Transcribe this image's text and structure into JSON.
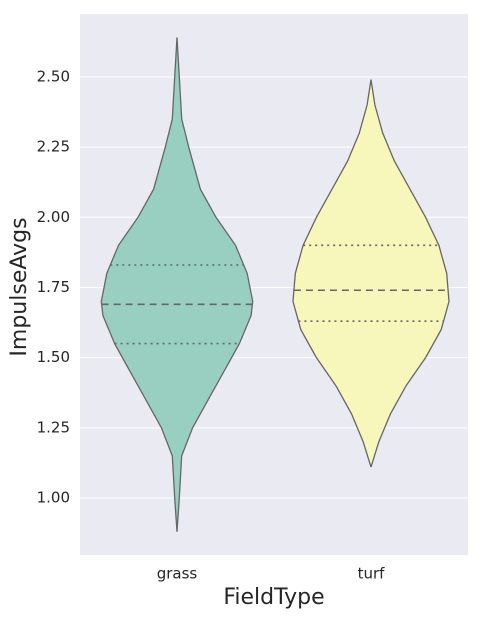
{
  "chart_data": {
    "type": "violin",
    "x_label": "FieldType",
    "y_label": "ImpulseAvgs",
    "categories": [
      "grass",
      "turf"
    ],
    "ylim": [
      0.797,
      2.724
    ],
    "yticks": [
      {
        "value": 1.0,
        "label": "1.00"
      },
      {
        "value": 1.25,
        "label": "1.25"
      },
      {
        "value": 1.5,
        "label": "1.50"
      },
      {
        "value": 1.75,
        "label": "1.75"
      },
      {
        "value": 2.0,
        "label": "2.00"
      },
      {
        "value": 2.25,
        "label": "2.25"
      },
      {
        "value": 2.5,
        "label": "2.50"
      }
    ],
    "grid": true,
    "violins": [
      {
        "color": "#98cfc1",
        "q1": 1.55,
        "median": 1.69,
        "q3": 1.83,
        "profile": {
          "y": [
            0.88,
            1.0,
            1.15,
            1.25,
            1.35,
            1.45,
            1.55,
            1.65,
            1.7,
            1.8,
            1.9,
            2.0,
            2.1,
            2.25,
            2.35,
            2.5,
            2.64
          ],
          "width": [
            0,
            0.03,
            0.06,
            0.2,
            0.4,
            0.6,
            0.8,
            0.95,
            0.97,
            0.9,
            0.75,
            0.5,
            0.3,
            0.15,
            0.06,
            0.03,
            0
          ]
        }
      },
      {
        "color": "#f7f6bb",
        "q1": 1.63,
        "median": 1.74,
        "q3": 1.9,
        "profile": {
          "y": [
            1.11,
            1.2,
            1.3,
            1.4,
            1.5,
            1.6,
            1.7,
            1.8,
            1.9,
            2.0,
            2.1,
            2.2,
            2.3,
            2.4,
            2.49
          ],
          "width": [
            0,
            0.1,
            0.25,
            0.45,
            0.7,
            0.9,
            1.0,
            0.97,
            0.87,
            0.7,
            0.5,
            0.3,
            0.15,
            0.05,
            0
          ]
        }
      }
    ]
  }
}
